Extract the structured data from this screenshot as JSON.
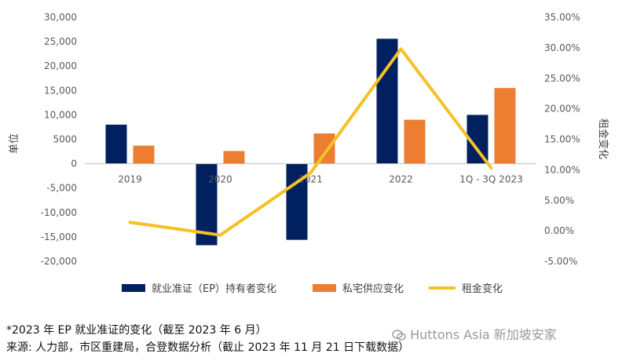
{
  "chart_data": {
    "type": "bar",
    "categories": [
      "2019",
      "2020",
      "2021",
      "2022",
      "1Q - 3Q 2023"
    ],
    "series": [
      {
        "name": "就业准证（EP）持有者变化",
        "kind": "bar",
        "axis": "left",
        "color": "#002060",
        "values": [
          8000,
          -16700,
          -15600,
          25600,
          10000
        ]
      },
      {
        "name": "私宅供应变化",
        "kind": "bar",
        "axis": "left",
        "color": "#ED7D31",
        "values": [
          3700,
          2600,
          6200,
          9000,
          15500
        ]
      },
      {
        "name": "租金变化",
        "kind": "line",
        "axis": "right",
        "color": "#F4C127",
        "values": [
          1.4,
          -0.7,
          9.5,
          29.8,
          10.3
        ]
      }
    ],
    "ylabel": "单位",
    "y2label": "租金变化",
    "ylim": [
      -20000,
      30000
    ],
    "yticks": [
      "30,000",
      "25,000",
      "20,000",
      "15,000",
      "10,000",
      "5000",
      "0",
      "-5,000",
      "-10,000",
      "-15,000",
      "-20,000"
    ],
    "y2lim": [
      -5,
      35
    ],
    "y2ticks": [
      "35.00%",
      "30.00%",
      "25.00%",
      "20.00%",
      "15.00%",
      "10.00%",
      "5.00%",
      "0.00%",
      "-5.00%"
    ],
    "grid": false,
    "legend_position": "bottom"
  },
  "footnotes": {
    "line1": "*2023 年 EP 就业准证的变化（截至 2023 年 6 月）",
    "line2": "来源: 人力部，市区重建局，合登数据分析（截止 2023 年 11 月 21 日下载数据）"
  },
  "watermark": {
    "text": "Huttons Asia 新加坡安家",
    "icon": "wechat-icon"
  }
}
